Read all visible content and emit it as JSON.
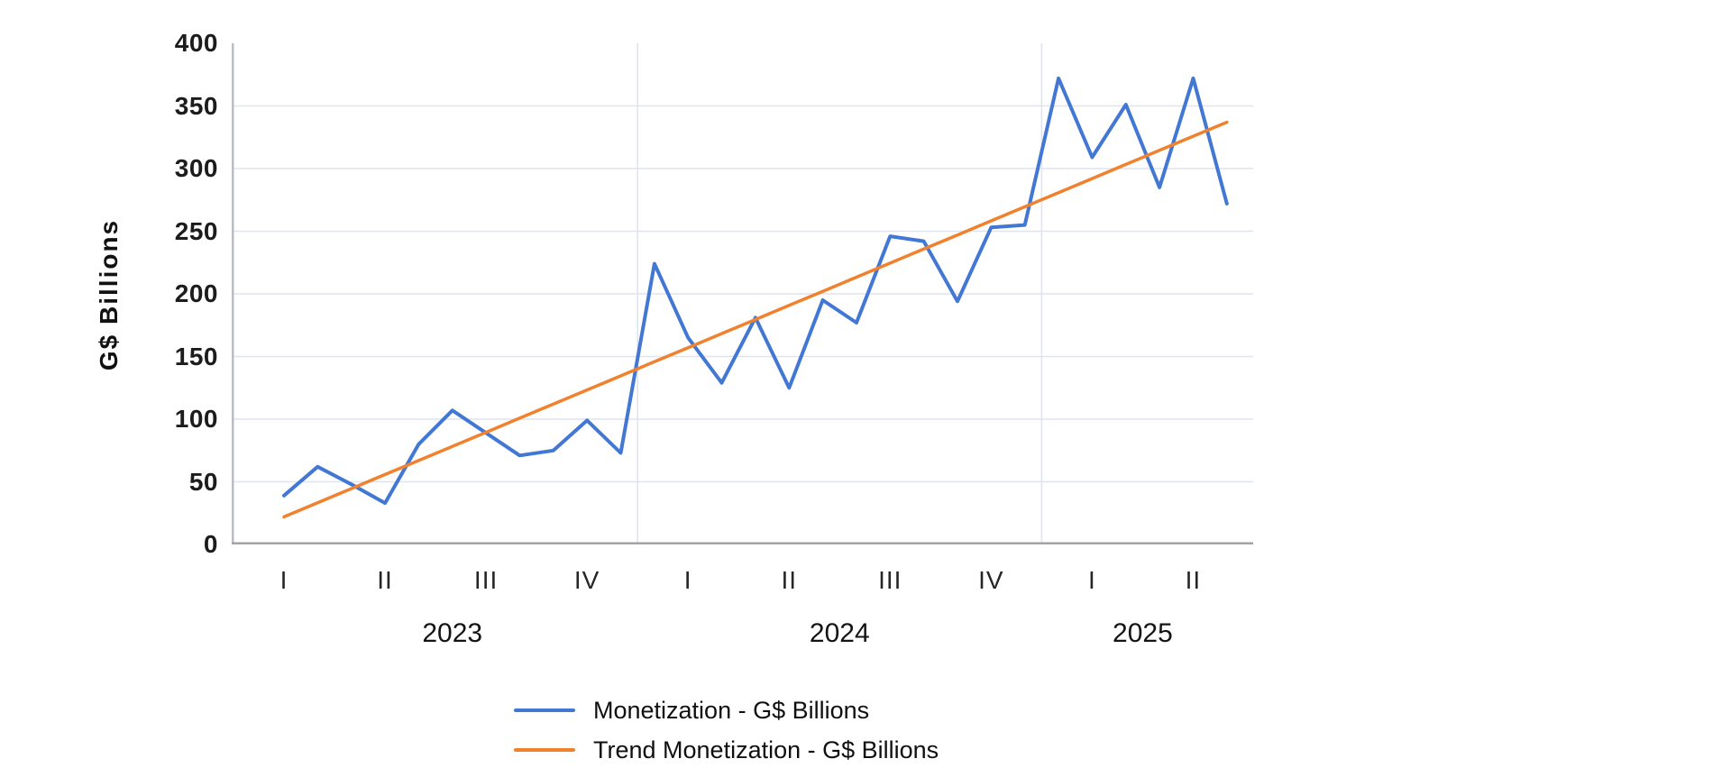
{
  "chart_data": {
    "type": "line",
    "title": "",
    "ylabel": "G$ Billions",
    "ylim": [
      0,
      400
    ],
    "y_ticks": [
      0,
      50,
      100,
      150,
      200,
      250,
      300,
      350,
      400
    ],
    "x_axis": {
      "quarter_ticks": [
        {
          "label": "I",
          "point": 0
        },
        {
          "label": "II",
          "point": 3
        },
        {
          "label": "III",
          "point": 6
        },
        {
          "label": "IV",
          "point": 9
        },
        {
          "label": "I",
          "point": 12
        },
        {
          "label": "II",
          "point": 15
        },
        {
          "label": "III",
          "point": 18
        },
        {
          "label": "IV",
          "point": 21
        },
        {
          "label": "I",
          "point": 24
        },
        {
          "label": "II",
          "point": 27
        }
      ],
      "year_groups": [
        {
          "label": "2023",
          "from": 0,
          "to": 10
        },
        {
          "label": "2024",
          "from": 11,
          "to": 22
        },
        {
          "label": "2025",
          "from": 23,
          "to": 28
        }
      ]
    },
    "grid": {
      "horizontal": true,
      "year_separators_after_points": [
        10,
        22
      ]
    },
    "legend_position": "bottom",
    "series": [
      {
        "name": "Monetization - G$ Billions",
        "color": "#4277d4",
        "values": [
          39,
          62,
          48,
          33,
          80,
          107,
          89,
          71,
          75,
          99,
          73,
          224,
          165,
          129,
          181,
          125,
          195,
          177,
          246,
          242,
          194,
          253,
          255,
          372,
          309,
          351,
          285,
          372,
          272
        ]
      },
      {
        "name": "Trend Monetization - G$ Billions",
        "color": "#f0822f",
        "values": [
          22,
          33.3,
          44.5,
          55.8,
          67,
          78.3,
          89.5,
          100.8,
          112,
          123.3,
          134.5,
          145.8,
          157,
          168.3,
          179.5,
          190.8,
          202,
          213.3,
          224.5,
          235.8,
          247,
          258.3,
          269.5,
          280.8,
          292,
          303.3,
          314.5,
          325.8,
          337
        ]
      }
    ]
  }
}
